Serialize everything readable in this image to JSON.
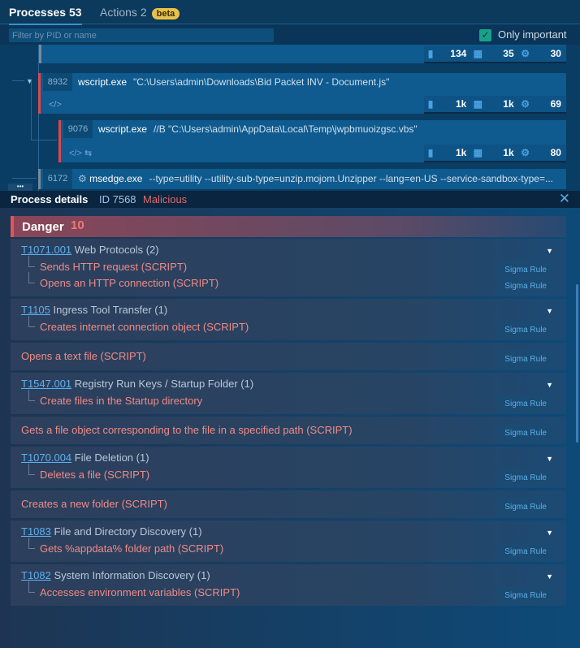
{
  "tabs": {
    "processes": "Processes 53",
    "actions": "Actions",
    "actions_count": "2",
    "beta": "beta"
  },
  "filter": {
    "placeholder": "Filter by PID or name",
    "value": ""
  },
  "only_important": {
    "label": "Only important",
    "checked": true
  },
  "processes": [
    {
      "pid": "",
      "name": "",
      "cmd": "",
      "stats": [
        "134",
        "35",
        "30"
      ]
    },
    {
      "pid": "8932",
      "name": "wscript.exe",
      "cmd": "\"C:\\Users\\admin\\Downloads\\Bid Packet INV - Document.js\"",
      "stats": [
        "1k",
        "1k",
        "69"
      ]
    },
    {
      "pid": "9076",
      "name": "wscript.exe",
      "cmd": "//B \"C:\\Users\\admin\\AppData\\Local\\Temp\\jwpbmuoizgsc.vbs\"",
      "stats": [
        "1k",
        "1k",
        "80"
      ]
    },
    {
      "pid": "6172",
      "name": "msedge.exe",
      "cmd": "--type=utility --utility-sub-type=unzip.mojom.Unzipper --lang=en-US --service-sandbox-type=..."
    }
  ],
  "details": {
    "title": "Process details",
    "id": "ID 7568",
    "verdict": "Malicious",
    "close": "✕"
  },
  "danger": {
    "label": "Danger",
    "count": "10"
  },
  "sigma": "Sigma Rule",
  "groups": [
    {
      "tid": "T1071.001",
      "name": " Web Protocols (2)",
      "items": [
        "Sends HTTP request (SCRIPT)",
        "Opens an HTTP connection (SCRIPT)"
      ]
    },
    {
      "tid": "T1105",
      "name": " Ingress Tool Transfer (1)",
      "items": [
        "Creates internet connection object (SCRIPT)"
      ]
    },
    {
      "single": "Opens a text file (SCRIPT)"
    },
    {
      "tid": "T1547.001",
      "name": " Registry Run Keys / Startup Folder (1)",
      "items": [
        "Create files in the Startup directory"
      ]
    },
    {
      "single": "Gets a file object corresponding to the file in a specified path (SCRIPT)"
    },
    {
      "tid": "T1070.004",
      "name": " File Deletion (1)",
      "items": [
        "Deletes a file (SCRIPT)"
      ]
    },
    {
      "single": "Creates a new folder (SCRIPT)"
    },
    {
      "tid": "T1083",
      "name": " File and Directory Discovery (1)",
      "items": [
        "Gets %appdata% folder path (SCRIPT)"
      ]
    },
    {
      "tid": "T1082",
      "name": " System Information Discovery (1)",
      "items": [
        "Accesses environment variables (SCRIPT)"
      ]
    }
  ]
}
